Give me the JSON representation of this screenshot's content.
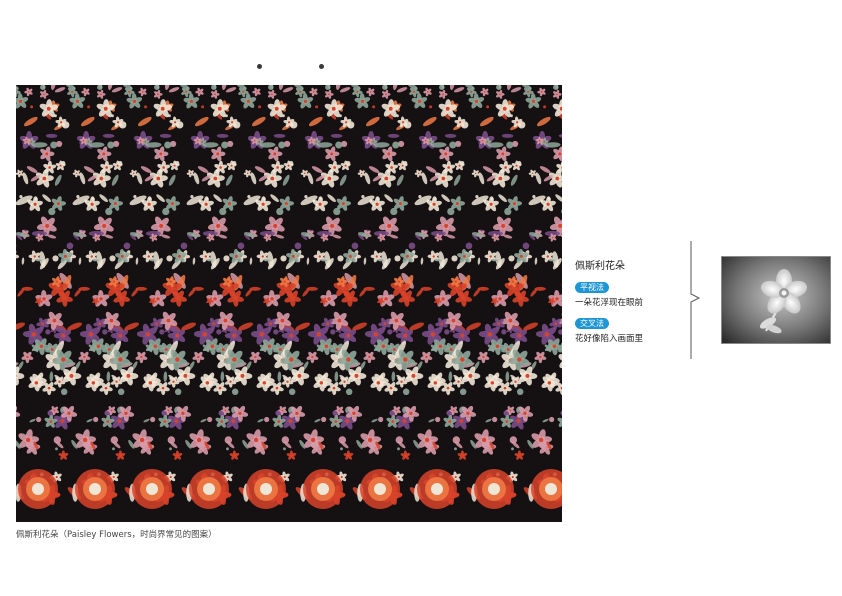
{
  "page": {
    "caption": "佩斯利花朵（Paisley Flowers，时尚界常见的图案）"
  },
  "stereogram": {
    "subject": "paisley floral autostereogram",
    "colors": {
      "background": "#151012",
      "red": "#d8432a",
      "orange": "#ee7a45",
      "pink": "#d79aa8",
      "sage": "#8fa79a",
      "purple": "#7a4c8a",
      "cream": "#efe6d6"
    }
  },
  "info": {
    "title": "佩斯利花朵",
    "methods": [
      {
        "badge": "平视法",
        "description": "一朵花浮现在眼前"
      },
      {
        "badge": "交叉法",
        "description": "花好像陷入画面里"
      }
    ],
    "badge_color": "#1f96d4"
  },
  "preview": {
    "subject": "hidden flower depth map",
    "icon": "flower-icon"
  }
}
